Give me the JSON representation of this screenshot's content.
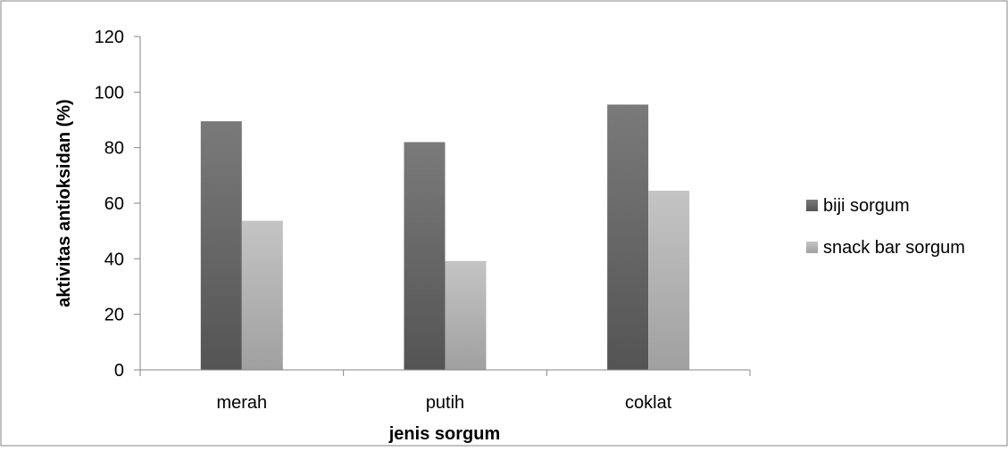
{
  "chart_data": {
    "type": "bar",
    "categories": [
      "merah",
      "putih",
      "coklat"
    ],
    "series": [
      {
        "name": "biji sorgum",
        "values": [
          89.5,
          82,
          95.5
        ]
      },
      {
        "name": "snack bar sorgum",
        "values": [
          53.7,
          39.2,
          64.5
        ]
      }
    ],
    "title": "",
    "xlabel": "jenis sorgum",
    "ylabel": "aktivitas antioksidan (%)",
    "ylim": [
      0,
      120
    ],
    "yticks": [
      0,
      20,
      40,
      60,
      80,
      100,
      120
    ],
    "grid": false,
    "legend_position": "right",
    "colors": {
      "biji sorgum": [
        "#7a7a7a",
        "#545454"
      ],
      "snack bar sorgum": [
        "#c4c4c4",
        "#a0a0a0"
      ],
      "axis": "#868686",
      "frame": "#868686"
    }
  }
}
